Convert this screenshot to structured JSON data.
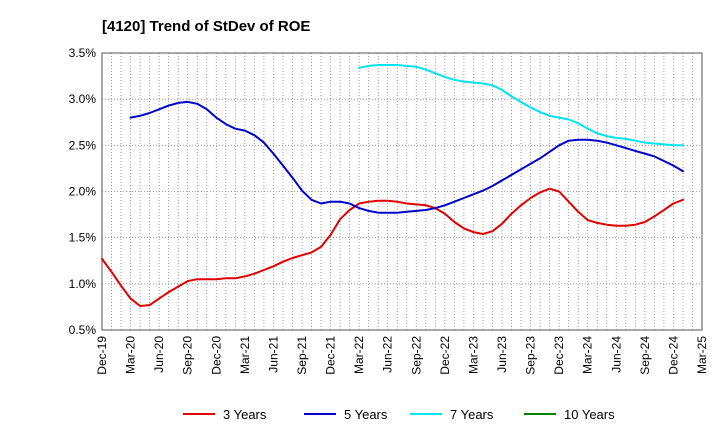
{
  "chart_data": {
    "type": "line",
    "title": "[4120]  Trend of StDev of ROE",
    "xlabel": "",
    "ylabel": "",
    "x_ticks": [
      "Dec-19",
      "Mar-20",
      "Jun-20",
      "Sep-20",
      "Dec-20",
      "Mar-21",
      "Jun-21",
      "Sep-21",
      "Dec-21",
      "Mar-22",
      "Jun-22",
      "Sep-22",
      "Dec-22",
      "Mar-23",
      "Jun-23",
      "Sep-23",
      "Dec-23",
      "Mar-24",
      "Jun-24",
      "Sep-24",
      "Dec-24",
      "Mar-25"
    ],
    "y_ticks": [
      "0.5%",
      "1.0%",
      "1.5%",
      "2.0%",
      "2.5%",
      "3.0%",
      "3.5%"
    ],
    "ylim": [
      0.5,
      3.5
    ],
    "y_unit": "%",
    "grid": true,
    "legend_position": "bottom",
    "series": [
      {
        "name": "3 Years",
        "color": "#e00000",
        "points": [
          [
            "Dec-19",
            1.27
          ],
          [
            "Jan-20",
            1.13
          ],
          [
            "Feb-20",
            0.98
          ],
          [
            "Mar-20",
            0.84
          ],
          [
            "Apr-20",
            0.76
          ],
          [
            "May-20",
            0.77
          ],
          [
            "Jun-20",
            0.84
          ],
          [
            "Jul-20",
            0.91
          ],
          [
            "Aug-20",
            0.97
          ],
          [
            "Sep-20",
            1.03
          ],
          [
            "Oct-20",
            1.05
          ],
          [
            "Nov-20",
            1.05
          ],
          [
            "Dec-20",
            1.05
          ],
          [
            "Jan-21",
            1.06
          ],
          [
            "Feb-21",
            1.06
          ],
          [
            "Mar-21",
            1.08
          ],
          [
            "Apr-21",
            1.11
          ],
          [
            "May-21",
            1.15
          ],
          [
            "Jun-21",
            1.19
          ],
          [
            "Jul-21",
            1.24
          ],
          [
            "Aug-21",
            1.28
          ],
          [
            "Sep-21",
            1.31
          ],
          [
            "Oct-21",
            1.34
          ],
          [
            "Nov-21",
            1.4
          ],
          [
            "Dec-21",
            1.53
          ],
          [
            "Jan-22",
            1.7
          ],
          [
            "Feb-22",
            1.8
          ],
          [
            "Mar-22",
            1.87
          ],
          [
            "Apr-22",
            1.89
          ],
          [
            "May-22",
            1.9
          ],
          [
            "Jun-22",
            1.9
          ],
          [
            "Jul-22",
            1.89
          ],
          [
            "Aug-22",
            1.87
          ],
          [
            "Sep-22",
            1.86
          ],
          [
            "Oct-22",
            1.85
          ],
          [
            "Nov-22",
            1.82
          ],
          [
            "Dec-22",
            1.76
          ],
          [
            "Jan-23",
            1.67
          ],
          [
            "Feb-23",
            1.6
          ],
          [
            "Mar-23",
            1.56
          ],
          [
            "Apr-23",
            1.54
          ],
          [
            "May-23",
            1.57
          ],
          [
            "Jun-23",
            1.65
          ],
          [
            "Jul-23",
            1.76
          ],
          [
            "Aug-23",
            1.85
          ],
          [
            "Sep-23",
            1.93
          ],
          [
            "Oct-23",
            1.99
          ],
          [
            "Nov-23",
            2.03
          ],
          [
            "Dec-23",
            2.0
          ],
          [
            "Jan-24",
            1.89
          ],
          [
            "Feb-24",
            1.78
          ],
          [
            "Mar-24",
            1.69
          ],
          [
            "Apr-24",
            1.66
          ],
          [
            "May-24",
            1.64
          ],
          [
            "Jun-24",
            1.63
          ],
          [
            "Jul-24",
            1.63
          ],
          [
            "Aug-24",
            1.64
          ],
          [
            "Sep-24",
            1.67
          ],
          [
            "Oct-24",
            1.73
          ],
          [
            "Nov-24",
            1.8
          ],
          [
            "Dec-24",
            1.87
          ],
          [
            "Jan-25",
            1.91
          ]
        ]
      },
      {
        "name": "5 Years",
        "color": "#0000cc",
        "points": [
          [
            "Mar-20",
            2.8
          ],
          [
            "Apr-20",
            2.82
          ],
          [
            "May-20",
            2.85
          ],
          [
            "Jun-20",
            2.89
          ],
          [
            "Jul-20",
            2.93
          ],
          [
            "Aug-20",
            2.96
          ],
          [
            "Sep-20",
            2.97
          ],
          [
            "Oct-20",
            2.95
          ],
          [
            "Nov-20",
            2.89
          ],
          [
            "Dec-20",
            2.8
          ],
          [
            "Jan-21",
            2.73
          ],
          [
            "Feb-21",
            2.68
          ],
          [
            "Mar-21",
            2.66
          ],
          [
            "Apr-21",
            2.61
          ],
          [
            "May-21",
            2.53
          ],
          [
            "Jun-21",
            2.41
          ],
          [
            "Jul-21",
            2.28
          ],
          [
            "Aug-21",
            2.15
          ],
          [
            "Sep-21",
            2.01
          ],
          [
            "Oct-21",
            1.91
          ],
          [
            "Nov-21",
            1.87
          ],
          [
            "Dec-21",
            1.89
          ],
          [
            "Jan-22",
            1.89
          ],
          [
            "Feb-22",
            1.87
          ],
          [
            "Mar-22",
            1.82
          ],
          [
            "Apr-22",
            1.79
          ],
          [
            "May-22",
            1.77
          ],
          [
            "Jun-22",
            1.77
          ],
          [
            "Jul-22",
            1.77
          ],
          [
            "Aug-22",
            1.78
          ],
          [
            "Sep-22",
            1.79
          ],
          [
            "Oct-22",
            1.8
          ],
          [
            "Nov-22",
            1.82
          ],
          [
            "Dec-22",
            1.85
          ],
          [
            "Jan-23",
            1.89
          ],
          [
            "Feb-23",
            1.93
          ],
          [
            "Mar-23",
            1.97
          ],
          [
            "Apr-23",
            2.01
          ],
          [
            "May-23",
            2.06
          ],
          [
            "Jun-23",
            2.12
          ],
          [
            "Jul-23",
            2.18
          ],
          [
            "Aug-23",
            2.24
          ],
          [
            "Sep-23",
            2.3
          ],
          [
            "Oct-23",
            2.36
          ],
          [
            "Nov-23",
            2.43
          ],
          [
            "Dec-23",
            2.5
          ],
          [
            "Jan-24",
            2.55
          ],
          [
            "Feb-24",
            2.56
          ],
          [
            "Mar-24",
            2.56
          ],
          [
            "Apr-24",
            2.55
          ],
          [
            "May-24",
            2.53
          ],
          [
            "Jun-24",
            2.5
          ],
          [
            "Jul-24",
            2.47
          ],
          [
            "Aug-24",
            2.44
          ],
          [
            "Sep-24",
            2.41
          ],
          [
            "Oct-24",
            2.38
          ],
          [
            "Nov-24",
            2.33
          ],
          [
            "Dec-24",
            2.28
          ],
          [
            "Jan-25",
            2.22
          ]
        ]
      },
      {
        "name": "7 Years",
        "color": "#00e5ee",
        "points": [
          [
            "Mar-22",
            3.34
          ],
          [
            "Apr-22",
            3.36
          ],
          [
            "May-22",
            3.37
          ],
          [
            "Jun-22",
            3.37
          ],
          [
            "Jul-22",
            3.37
          ],
          [
            "Aug-22",
            3.36
          ],
          [
            "Sep-22",
            3.35
          ],
          [
            "Oct-22",
            3.32
          ],
          [
            "Nov-22",
            3.28
          ],
          [
            "Dec-22",
            3.24
          ],
          [
            "Jan-23",
            3.21
          ],
          [
            "Feb-23",
            3.19
          ],
          [
            "Mar-23",
            3.18
          ],
          [
            "Apr-23",
            3.17
          ],
          [
            "May-23",
            3.15
          ],
          [
            "Jun-23",
            3.1
          ],
          [
            "Jul-23",
            3.03
          ],
          [
            "Aug-23",
            2.97
          ],
          [
            "Sep-23",
            2.91
          ],
          [
            "Oct-23",
            2.86
          ],
          [
            "Nov-23",
            2.82
          ],
          [
            "Dec-23",
            2.8
          ],
          [
            "Jan-24",
            2.78
          ],
          [
            "Feb-24",
            2.74
          ],
          [
            "Mar-24",
            2.68
          ],
          [
            "Apr-24",
            2.63
          ],
          [
            "May-24",
            2.6
          ],
          [
            "Jun-24",
            2.58
          ],
          [
            "Jul-24",
            2.57
          ],
          [
            "Aug-24",
            2.55
          ],
          [
            "Sep-24",
            2.53
          ],
          [
            "Oct-24",
            2.52
          ],
          [
            "Nov-24",
            2.51
          ],
          [
            "Dec-24",
            2.5
          ],
          [
            "Jan-25",
            2.5
          ]
        ]
      },
      {
        "name": "10 Years",
        "color": "#008000",
        "points": []
      }
    ]
  }
}
